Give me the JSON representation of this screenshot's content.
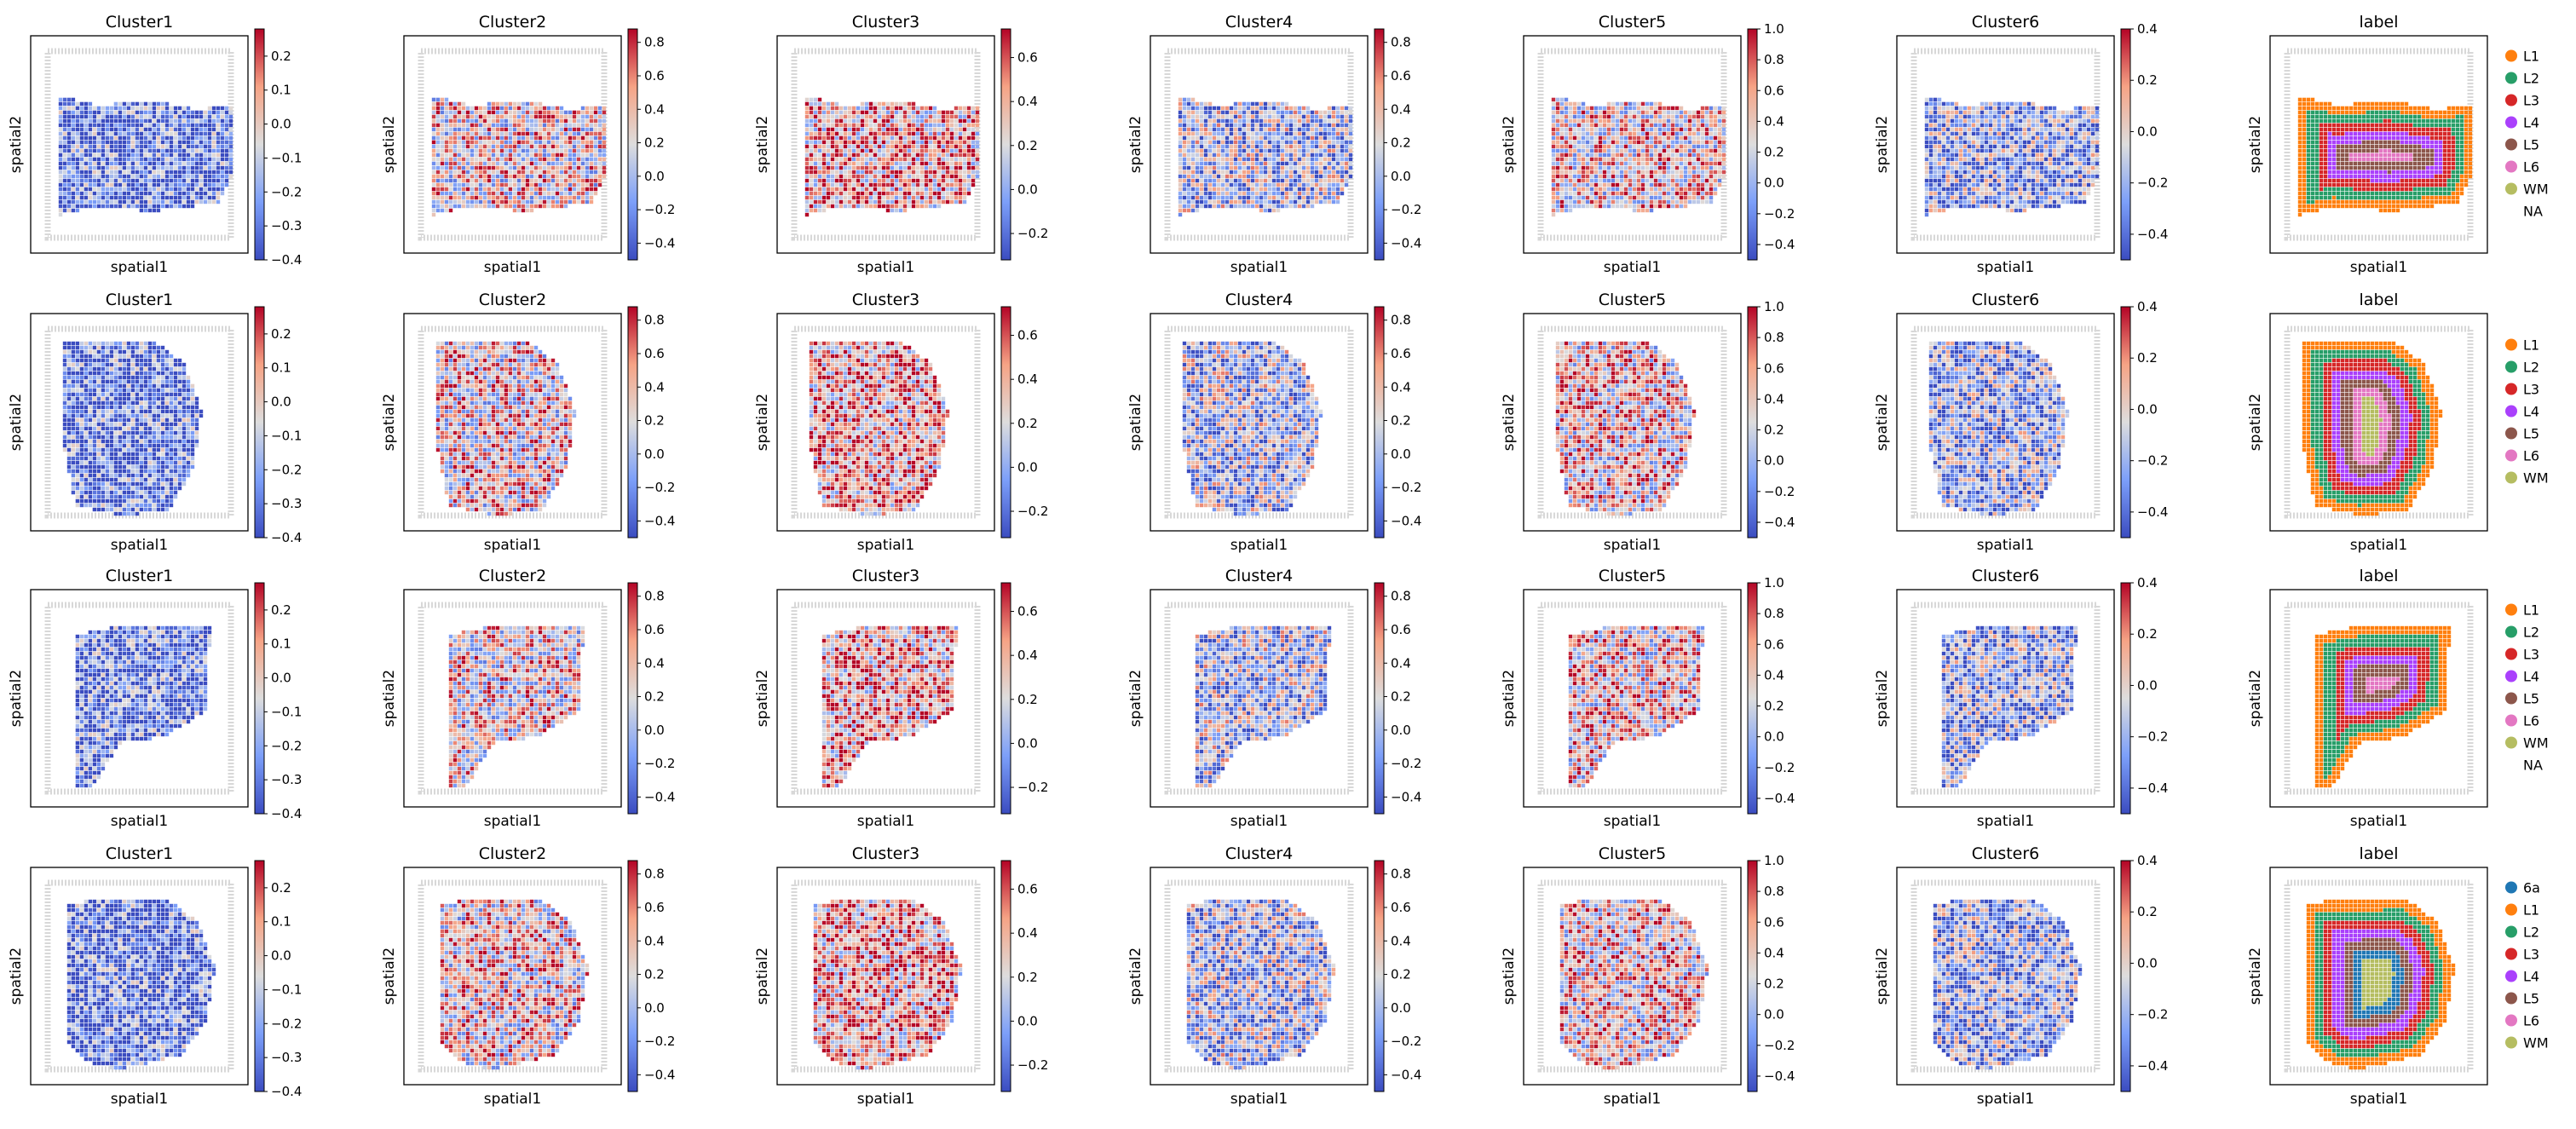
{
  "figure": {
    "xlabel": "spatial1",
    "ylabel": "spatial2"
  },
  "chart_data": {
    "type": "spatial-scatter-grid",
    "rows": 4,
    "columns": [
      "Cluster1",
      "Cluster2",
      "Cluster3",
      "Cluster4",
      "Cluster5",
      "Cluster6",
      "label"
    ],
    "colorbars": [
      {
        "name": "Cluster1",
        "cmap": "coolwarm",
        "min": -0.4,
        "max": 0.28,
        "ticks": [
          0.2,
          0.1,
          0.0,
          -0.1,
          -0.2,
          -0.3,
          -0.4
        ],
        "tick_labels": [
          "0.2",
          "0.1",
          "0.0",
          "−0.1",
          "−0.2",
          "−0.3",
          "−0.4"
        ]
      },
      {
        "name": "Cluster2",
        "cmap": "coolwarm",
        "min": -0.5,
        "max": 0.88,
        "ticks": [
          0.8,
          0.6,
          0.4,
          0.2,
          0.0,
          -0.2,
          -0.4
        ],
        "tick_labels": [
          "0.8",
          "0.6",
          "0.4",
          "0.2",
          "0.0",
          "−0.2",
          "−0.4"
        ]
      },
      {
        "name": "Cluster3",
        "cmap": "coolwarm",
        "min": -0.32,
        "max": 0.73,
        "ticks": [
          0.6,
          0.4,
          0.2,
          0.0,
          -0.2
        ],
        "tick_labels": [
          "0.6",
          "0.4",
          "0.2",
          "0.0",
          "−0.2"
        ]
      },
      {
        "name": "Cluster4",
        "cmap": "coolwarm",
        "min": -0.5,
        "max": 0.88,
        "ticks": [
          0.8,
          0.6,
          0.4,
          0.2,
          0.0,
          -0.2,
          -0.4
        ],
        "tick_labels": [
          "0.8",
          "0.6",
          "0.4",
          "0.2",
          "0.0",
          "−0.2",
          "−0.4"
        ]
      },
      {
        "name": "Cluster5",
        "cmap": "coolwarm",
        "min": -0.5,
        "max": 1.0,
        "ticks": [
          1.0,
          0.8,
          0.6,
          0.4,
          0.2,
          0.0,
          -0.2,
          -0.4
        ],
        "tick_labels": [
          "1.0",
          "0.8",
          "0.6",
          "0.4",
          "0.2",
          "0.0",
          "−0.2",
          "−0.4"
        ]
      },
      {
        "name": "Cluster6",
        "cmap": "coolwarm",
        "min": -0.5,
        "max": 0.4,
        "ticks": [
          0.4,
          0.2,
          0.0,
          -0.2,
          -0.4
        ],
        "tick_labels": [
          "0.4",
          "0.2",
          "0.0",
          "−0.2",
          "−0.4"
        ]
      }
    ],
    "label_legends": [
      [
        "L1",
        "L2",
        "L3",
        "L4",
        "L5",
        "L6",
        "WM",
        "NA"
      ],
      [
        "L1",
        "L2",
        "L3",
        "L4",
        "L5",
        "L6",
        "WM"
      ],
      [
        "L1",
        "L2",
        "L3",
        "L4",
        "L5",
        "L6",
        "WM",
        "NA"
      ],
      [
        "6a",
        "L1",
        "L2",
        "L3",
        "L4",
        "L5",
        "L6",
        "WM"
      ]
    ],
    "label_colors": {
      "6a": "#1f77b4",
      "L1": "#ff7f0e",
      "L2": "#279e68",
      "L3": "#d62728",
      "L4": "#aa40fc",
      "L5": "#8c564b",
      "L6": "#e377c2",
      "WM": "#b5bd61",
      "NA": "none"
    },
    "legend_placement": "right of label panel",
    "grid": false
  }
}
